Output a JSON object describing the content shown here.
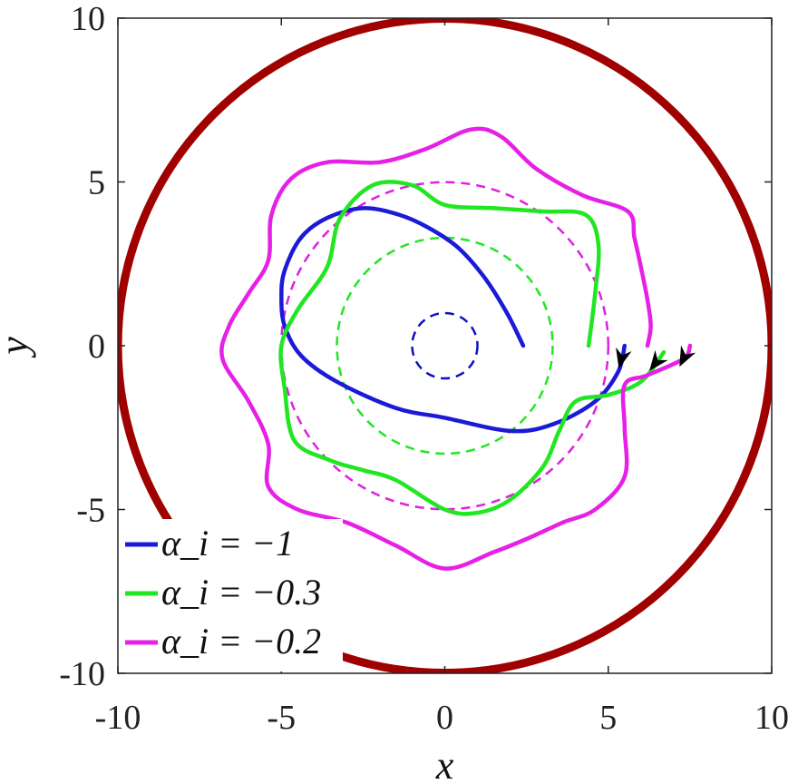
{
  "chart_data": {
    "type": "line",
    "xlabel": "x",
    "ylabel": "y",
    "xlim": [
      -10,
      10
    ],
    "ylim": [
      -10,
      10
    ],
    "x_ticks": [
      -10,
      -5,
      0,
      5,
      10
    ],
    "y_ticks": [
      -10,
      -5,
      0,
      5,
      10
    ],
    "x_tick_labels": [
      "-10",
      "-5",
      "0",
      "5",
      "10"
    ],
    "y_tick_labels": [
      "-10",
      "-5",
      "0",
      "5",
      "10"
    ],
    "grid": false,
    "legend_position": "bottom-left",
    "boundary": {
      "shape": "circle",
      "center": [
        0,
        0
      ],
      "radius": 10,
      "color": "#a00000"
    },
    "reference_circles": [
      {
        "center": [
          0,
          0
        ],
        "radius": 1.0,
        "color": "#1010c0",
        "style": "dashed"
      },
      {
        "center": [
          0,
          0
        ],
        "radius": 3.3,
        "color": "#22e622",
        "style": "dashed"
      },
      {
        "center": [
          0,
          0
        ],
        "radius": 5.0,
        "color": "#e020e0",
        "style": "dashed"
      }
    ],
    "series": [
      {
        "name": "α_i = −1",
        "color": "#1a1ad8",
        "points": [
          [
            5.5,
            0
          ],
          [
            5.3,
            -0.8
          ],
          [
            4.6,
            -1.7
          ],
          [
            3.3,
            -2.4
          ],
          [
            2.0,
            -2.6
          ],
          [
            0,
            -2.2
          ],
          [
            -1.5,
            -1.9
          ],
          [
            -3.3,
            -1.1
          ],
          [
            -4.4,
            -0.3
          ],
          [
            -4.9,
            0.6
          ],
          [
            -5.0,
            1.5
          ],
          [
            -4.9,
            2.3
          ],
          [
            -4.4,
            3.3
          ],
          [
            -3.6,
            3.9
          ],
          [
            -2.5,
            4.2
          ],
          [
            -1.4,
            4.0
          ],
          [
            -0.5,
            3.6
          ],
          [
            0.4,
            3.0
          ],
          [
            1.2,
            2.1
          ],
          [
            1.9,
            1.0
          ],
          [
            2.4,
            0
          ]
        ]
      },
      {
        "name": "α_i = −0.3",
        "color": "#22e622",
        "points": [
          [
            6.7,
            -0.2
          ],
          [
            6.0,
            -1.1
          ],
          [
            5.0,
            -1.5
          ],
          [
            4.0,
            -1.7
          ],
          [
            3.5,
            -2.6
          ],
          [
            3.0,
            -3.7
          ],
          [
            2.0,
            -4.7
          ],
          [
            1.0,
            -5.1
          ],
          [
            0,
            -5.0
          ],
          [
            -1.5,
            -4.1
          ],
          [
            -2.5,
            -3.8
          ],
          [
            -3.5,
            -3.5
          ],
          [
            -4.6,
            -2.9
          ],
          [
            -4.9,
            -1.3
          ],
          [
            -5.0,
            0
          ],
          [
            -4.5,
            1.1
          ],
          [
            -3.6,
            2.4
          ],
          [
            -3.2,
            3.9
          ],
          [
            -2.2,
            4.9
          ],
          [
            -1.0,
            4.9
          ],
          [
            0,
            4.3
          ],
          [
            1.5,
            4.2
          ],
          [
            3.0,
            4.1
          ],
          [
            4.3,
            4.0
          ],
          [
            4.7,
            3.1
          ],
          [
            4.6,
            1.6
          ],
          [
            4.4,
            0
          ]
        ]
      },
      {
        "name": "α_i = −0.2",
        "color": "#e620e6",
        "points": [
          [
            7.5,
            0
          ],
          [
            7.3,
            -0.4
          ],
          [
            6.2,
            -0.9
          ],
          [
            5.5,
            -1.2
          ],
          [
            5.5,
            -2.5
          ],
          [
            5.5,
            -4.0
          ],
          [
            4.6,
            -5.0
          ],
          [
            3.6,
            -5.4
          ],
          [
            2.5,
            -5.9
          ],
          [
            1.5,
            -6.3
          ],
          [
            0,
            -6.8
          ],
          [
            -1.5,
            -6.1
          ],
          [
            -3.0,
            -5.4
          ],
          [
            -4.5,
            -5.0
          ],
          [
            -5.4,
            -4.3
          ],
          [
            -5.4,
            -3.0
          ],
          [
            -6.0,
            -1.7
          ],
          [
            -6.8,
            -0.4
          ],
          [
            -6.6,
            0.6
          ],
          [
            -6.0,
            1.6
          ],
          [
            -5.4,
            2.6
          ],
          [
            -5.3,
            4.0
          ],
          [
            -4.7,
            5.1
          ],
          [
            -3.6,
            5.6
          ],
          [
            -2.0,
            5.6
          ],
          [
            -0.6,
            6.0
          ],
          [
            0.8,
            6.6
          ],
          [
            1.7,
            6.4
          ],
          [
            2.8,
            5.4
          ],
          [
            4.2,
            4.6
          ],
          [
            5.6,
            4.1
          ],
          [
            5.8,
            3.3
          ],
          [
            6.0,
            2.4
          ],
          [
            6.2,
            1.4
          ],
          [
            6.3,
            0.6
          ],
          [
            6.2,
            0
          ]
        ]
      }
    ],
    "direction_markers": [
      {
        "color": "#000000",
        "series": 0
      },
      {
        "color": "#000000",
        "series": 1
      },
      {
        "color": "#000000",
        "series": 2
      }
    ],
    "legend": [
      {
        "label": "α_i = −1",
        "color": "#1a1ad8"
      },
      {
        "label": "α_i = −0.3",
        "color": "#22e622"
      },
      {
        "label": "α_i = −0.2",
        "color": "#e620e6"
      }
    ]
  }
}
